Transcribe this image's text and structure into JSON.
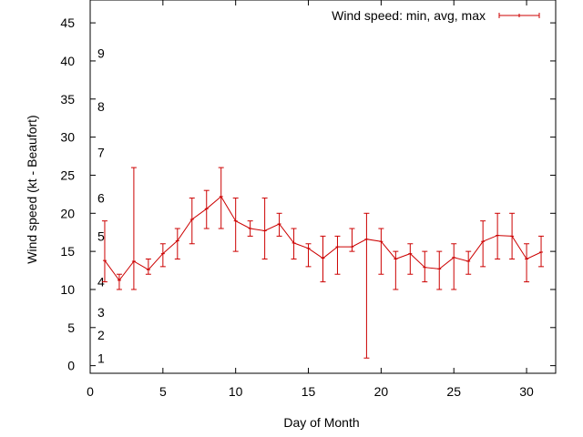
{
  "chart_data": {
    "type": "line",
    "title": "",
    "xlabel": "Day of Month",
    "ylabel": "Wind speed (kt - Beaufort)",
    "xlim": [
      0,
      32
    ],
    "ylim": [
      -1,
      48
    ],
    "xticks": [
      0,
      5,
      10,
      15,
      20,
      25,
      30
    ],
    "yticks": [
      0,
      5,
      10,
      15,
      20,
      25,
      30,
      35,
      40,
      45
    ],
    "grid": false,
    "legend_position": "top-right",
    "beaufort_labels": [
      {
        "label": "1",
        "value": 1
      },
      {
        "label": "2",
        "value": 4
      },
      {
        "label": "3",
        "value": 7
      },
      {
        "label": "4",
        "value": 11
      },
      {
        "label": "5",
        "value": 17
      },
      {
        "label": "6",
        "value": 22
      },
      {
        "label": "7",
        "value": 28
      },
      {
        "label": "8",
        "value": 34
      },
      {
        "label": "9",
        "value": 41
      }
    ],
    "series": [
      {
        "name": "Wind speed: min, avg, max",
        "color": "#cc0000",
        "x": [
          1,
          2,
          3,
          4,
          5,
          6,
          7,
          8,
          9,
          10,
          11,
          12,
          13,
          14,
          15,
          16,
          17,
          18,
          19,
          20,
          21,
          22,
          23,
          24,
          25,
          26,
          27,
          28,
          29,
          30,
          31
        ],
        "avg": [
          13.8,
          11.2,
          13.7,
          12.6,
          14.7,
          16.4,
          19.2,
          20.6,
          22.2,
          19.0,
          18.0,
          17.7,
          18.6,
          16.1,
          15.4,
          14.1,
          15.6,
          15.6,
          16.6,
          16.3,
          14.0,
          14.7,
          12.9,
          12.7,
          14.2,
          13.7,
          16.3,
          17.1,
          17.0,
          14.0,
          14.9
        ],
        "min": [
          11,
          10,
          10,
          12,
          13,
          14,
          16,
          18,
          18,
          15,
          17,
          14,
          17,
          14,
          13,
          11,
          12,
          15,
          1,
          12,
          10,
          12,
          11,
          10,
          10,
          12,
          13,
          14,
          14,
          11,
          13
        ],
        "max": [
          19,
          12,
          26,
          14,
          16,
          18,
          22,
          23,
          26,
          22,
          19,
          22,
          20,
          18,
          16,
          17,
          17,
          18,
          20,
          18,
          15,
          16,
          15,
          15,
          16,
          15,
          19,
          20,
          20,
          16,
          17
        ]
      }
    ]
  }
}
